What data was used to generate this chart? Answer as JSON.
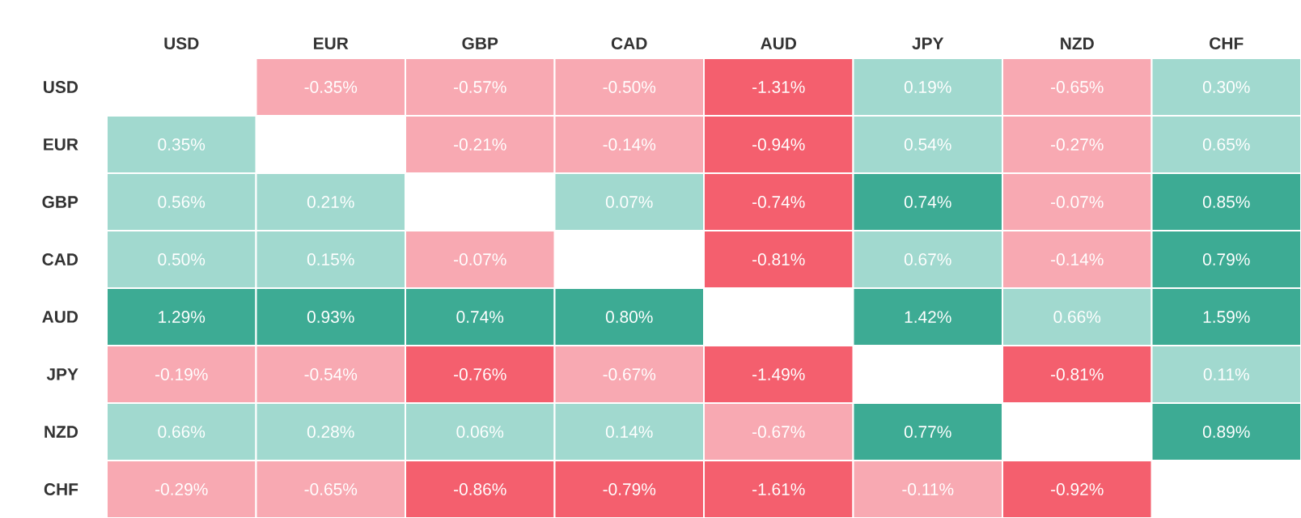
{
  "chart_data": {
    "type": "heatmap",
    "categories": [
      "USD",
      "EUR",
      "GBP",
      "CAD",
      "AUD",
      "JPY",
      "NZD",
      "CHF"
    ],
    "y_categories": [
      "USD",
      "EUR",
      "GBP",
      "CAD",
      "AUD",
      "JPY",
      "NZD",
      "CHF"
    ],
    "cells": [
      [
        null,
        -0.35,
        -0.57,
        -0.5,
        -1.31,
        0.19,
        -0.65,
        0.3
      ],
      [
        0.35,
        null,
        -0.21,
        -0.14,
        -0.94,
        0.54,
        -0.27,
        0.65
      ],
      [
        0.56,
        0.21,
        null,
        0.07,
        -0.74,
        0.74,
        -0.07,
        0.85
      ],
      [
        0.5,
        0.15,
        -0.07,
        null,
        -0.81,
        0.67,
        -0.14,
        0.79
      ],
      [
        1.29,
        0.93,
        0.74,
        0.8,
        null,
        1.42,
        0.66,
        1.59
      ],
      [
        -0.19,
        -0.54,
        -0.76,
        -0.67,
        -1.49,
        null,
        -0.81,
        0.11
      ],
      [
        0.66,
        0.28,
        0.06,
        0.14,
        -0.67,
        0.77,
        null,
        0.89
      ],
      [
        -0.29,
        -0.65,
        -0.86,
        -0.79,
        -1.61,
        -0.11,
        -0.92,
        null
      ]
    ],
    "cell_labels": [
      [
        null,
        "-0.35%",
        "-0.57%",
        "-0.50%",
        "-1.31%",
        "0.19%",
        "-0.65%",
        "0.30%"
      ],
      [
        "0.35%",
        null,
        "-0.21%",
        "-0.14%",
        "-0.94%",
        "0.54%",
        "-0.27%",
        "0.65%"
      ],
      [
        "0.56%",
        "0.21%",
        null,
        "0.07%",
        "-0.74%",
        "0.74%",
        "-0.07%",
        "0.85%"
      ],
      [
        "0.50%",
        "0.15%",
        "-0.07%",
        null,
        "-0.81%",
        "0.67%",
        "-0.14%",
        "0.79%"
      ],
      [
        "1.29%",
        "0.93%",
        "0.74%",
        "0.80%",
        null,
        "1.42%",
        "0.66%",
        "1.59%"
      ],
      [
        "-0.19%",
        "-0.54%",
        "-0.76%",
        "-0.67%",
        "-1.49%",
        null,
        "-0.81%",
        "0.11%"
      ],
      [
        "0.66%",
        "0.28%",
        "0.06%",
        "0.14%",
        "-0.67%",
        "0.77%",
        null,
        "0.89%"
      ],
      [
        "-0.29%",
        "-0.65%",
        "-0.86%",
        "-0.79%",
        "-1.61%",
        "-0.11%",
        "-0.92%",
        null
      ]
    ]
  }
}
